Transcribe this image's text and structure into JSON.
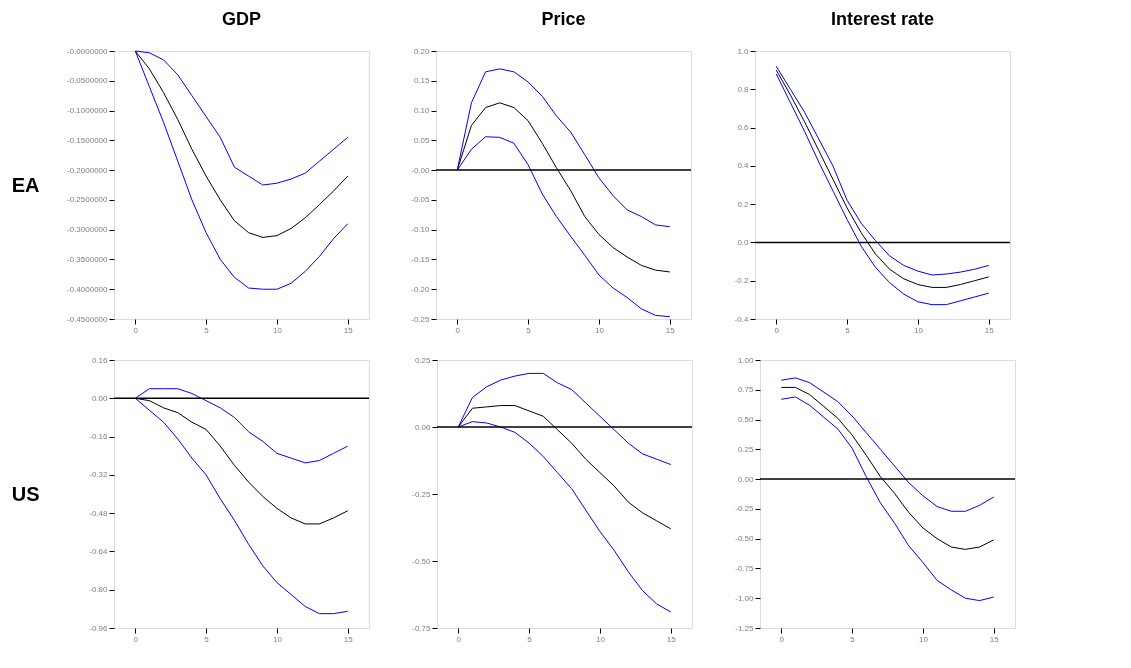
{
  "chart_data": [
    {
      "type": "line",
      "title": "GDP",
      "ylabel": "EA",
      "x": [
        0,
        1,
        2,
        3,
        4,
        5,
        6,
        7,
        8,
        9,
        10,
        11,
        12,
        13,
        14,
        15
      ],
      "series": [
        {
          "color": "#0000ff",
          "values": [
            0,
            -0.003,
            -0.015,
            -0.04,
            -0.075,
            -0.11,
            -0.145,
            -0.195,
            -0.21,
            -0.225,
            -0.222,
            -0.215,
            -0.205,
            -0.185,
            -0.165,
            -0.145
          ]
        },
        {
          "color": "#000000",
          "values": [
            0,
            -0.03,
            -0.07,
            -0.115,
            -0.165,
            -0.21,
            -0.25,
            -0.285,
            -0.305,
            -0.313,
            -0.31,
            -0.298,
            -0.28,
            -0.258,
            -0.235,
            -0.21
          ]
        },
        {
          "color": "#0000ff",
          "values": [
            0,
            -0.06,
            -0.12,
            -0.185,
            -0.25,
            -0.305,
            -0.35,
            -0.38,
            -0.398,
            -0.4,
            -0.4,
            -0.39,
            -0.37,
            -0.345,
            -0.315,
            -0.29
          ]
        }
      ],
      "xlim": [
        -1.5,
        16.5
      ],
      "xticks": [
        0,
        5,
        10,
        15
      ],
      "ylim": [
        -0.45,
        0
      ],
      "yticks": [
        {
          "value": 0,
          "label": "-0.0000000"
        },
        {
          "value": -0.05,
          "label": "-0.0500000"
        },
        {
          "value": -0.1,
          "label": "-0.1000000"
        },
        {
          "value": -0.15,
          "label": "-0.1500000"
        },
        {
          "value": -0.2,
          "label": "-0.2000000"
        },
        {
          "value": -0.25,
          "label": "-0.2500000"
        },
        {
          "value": -0.3,
          "label": "-0.3000000"
        },
        {
          "value": -0.35,
          "label": "-0.3500000"
        },
        {
          "value": -0.4,
          "label": "-0.4000000"
        },
        {
          "value": -0.45,
          "label": "-0.4500000"
        }
      ]
    },
    {
      "type": "line",
      "title": "Price",
      "x": [
        0,
        1,
        2,
        3,
        4,
        5,
        6,
        7,
        8,
        9,
        10,
        11,
        12,
        13,
        14,
        15
      ],
      "series": [
        {
          "color": "#0000ff",
          "values": [
            0,
            0.113,
            0.165,
            0.17,
            0.165,
            0.148,
            0.124,
            0.091,
            0.064,
            0.026,
            -0.013,
            -0.043,
            -0.067,
            -0.078,
            -0.092,
            -0.095
          ]
        },
        {
          "color": "#000000",
          "values": [
            0,
            0.075,
            0.105,
            0.113,
            0.105,
            0.083,
            0.045,
            0.004,
            -0.034,
            -0.078,
            -0.108,
            -0.13,
            -0.146,
            -0.16,
            -0.168,
            -0.171
          ]
        },
        {
          "color": "#0000ff",
          "values": [
            0,
            0.035,
            0.056,
            0.055,
            0.045,
            0.009,
            -0.04,
            -0.078,
            -0.111,
            -0.143,
            -0.176,
            -0.198,
            -0.214,
            -0.233,
            -0.244,
            -0.246
          ]
        }
      ],
      "xlim": [
        -1.5,
        16.5
      ],
      "xticks": [
        0,
        5,
        10,
        15
      ],
      "ylim": [
        -0.25,
        0.2
      ],
      "yticks": [
        {
          "value": 0.2,
          "label": "0.20"
        },
        {
          "value": 0.15,
          "label": "0.15"
        },
        {
          "value": 0.1,
          "label": "0.10"
        },
        {
          "value": 0.05,
          "label": "0.05"
        },
        {
          "value": 0,
          "label": "-0.00"
        },
        {
          "value": -0.05,
          "label": "-0.05"
        },
        {
          "value": -0.1,
          "label": "-0.10"
        },
        {
          "value": -0.15,
          "label": "-0.15"
        },
        {
          "value": -0.2,
          "label": "-0.20"
        },
        {
          "value": -0.25,
          "label": "-0.25"
        }
      ],
      "ref_lines": [
        {
          "axis": "y",
          "value": 0,
          "color": "#000000"
        }
      ]
    },
    {
      "type": "line",
      "title": "Interest rate",
      "x": [
        0,
        1,
        2,
        3,
        4,
        5,
        6,
        7,
        8,
        9,
        10,
        11,
        12,
        13,
        14,
        15
      ],
      "series": [
        {
          "color": "#0000ff",
          "values": [
            0.92,
            0.8,
            0.68,
            0.54,
            0.4,
            0.22,
            0.1,
            0.01,
            -0.07,
            -0.12,
            -0.15,
            -0.17,
            -0.165,
            -0.155,
            -0.14,
            -0.12
          ]
        },
        {
          "color": "#000000",
          "values": [
            0.9,
            0.77,
            0.63,
            0.48,
            0.33,
            0.18,
            0.05,
            -0.06,
            -0.14,
            -0.19,
            -0.22,
            -0.235,
            -0.235,
            -0.22,
            -0.2,
            -0.18
          ]
        },
        {
          "color": "#0000ff",
          "values": [
            0.88,
            0.73,
            0.58,
            0.42,
            0.27,
            0.12,
            -0.02,
            -0.13,
            -0.21,
            -0.27,
            -0.31,
            -0.325,
            -0.325,
            -0.305,
            -0.285,
            -0.265
          ]
        }
      ],
      "xlim": [
        -1.5,
        16.5
      ],
      "xticks": [
        0,
        5,
        10,
        15
      ],
      "ylim": [
        -0.4,
        1.0
      ],
      "yticks": [
        {
          "value": 1.0,
          "label": "1.0"
        },
        {
          "value": 0.8,
          "label": "0.8"
        },
        {
          "value": 0.6,
          "label": "0.6"
        },
        {
          "value": 0.4,
          "label": "0.4"
        },
        {
          "value": 0.2,
          "label": "0.2"
        },
        {
          "value": 0,
          "label": "0.0"
        },
        {
          "value": -0.2,
          "label": "-0.2"
        },
        {
          "value": -0.4,
          "label": "-0.4"
        }
      ],
      "ref_lines": [
        {
          "axis": "y",
          "value": 0,
          "color": "#000000"
        }
      ]
    },
    {
      "type": "line",
      "ylabel": "US",
      "x": [
        0,
        1,
        2,
        3,
        4,
        5,
        6,
        7,
        8,
        9,
        10,
        11,
        12,
        13,
        14,
        15
      ],
      "series": [
        {
          "color": "#0000ff",
          "values": [
            0,
            0.04,
            0.04,
            0.04,
            0.02,
            -0.01,
            -0.04,
            -0.08,
            -0.14,
            -0.18,
            -0.23,
            -0.25,
            -0.27,
            -0.26,
            -0.23,
            -0.2
          ]
        },
        {
          "color": "#000000",
          "values": [
            0,
            -0.01,
            -0.04,
            -0.06,
            -0.1,
            -0.13,
            -0.2,
            -0.28,
            -0.35,
            -0.41,
            -0.46,
            -0.5,
            -0.525,
            -0.525,
            -0.5,
            -0.47
          ]
        },
        {
          "color": "#0000ff",
          "values": [
            0,
            -0.05,
            -0.1,
            -0.17,
            -0.25,
            -0.32,
            -0.42,
            -0.51,
            -0.61,
            -0.7,
            -0.77,
            -0.82,
            -0.87,
            -0.9,
            -0.9,
            -0.89
          ]
        }
      ],
      "xlim": [
        -1.5,
        16.5
      ],
      "xticks": [
        0,
        5,
        10,
        15
      ],
      "ylim": [
        -0.96,
        0.16
      ],
      "yticks": [
        {
          "value": 0.16,
          "label": "0.16"
        },
        {
          "value": 0,
          "label": "0.00"
        },
        {
          "value": -0.16,
          "label": "-0.16"
        },
        {
          "value": -0.32,
          "label": "-0.32"
        },
        {
          "value": -0.48,
          "label": "-0.48"
        },
        {
          "value": -0.64,
          "label": "-0.64"
        },
        {
          "value": -0.8,
          "label": "-0.80"
        },
        {
          "value": -0.96,
          "label": "-0.96"
        }
      ],
      "ref_lines": [
        {
          "axis": "y",
          "value": 0,
          "color": "#000000"
        }
      ]
    },
    {
      "type": "line",
      "x": [
        0,
        1,
        2,
        3,
        4,
        5,
        6,
        7,
        8,
        9,
        10,
        11,
        12,
        13,
        14,
        15
      ],
      "series": [
        {
          "color": "#0000ff",
          "values": [
            0,
            0.11,
            0.15,
            0.175,
            0.19,
            0.2,
            0.2,
            0.165,
            0.14,
            0.09,
            0.04,
            -0.01,
            -0.06,
            -0.1,
            -0.12,
            -0.14
          ]
        },
        {
          "color": "#000000",
          "values": [
            0,
            0.07,
            0.075,
            0.08,
            0.08,
            0.06,
            0.04,
            -0.01,
            -0.06,
            -0.12,
            -0.17,
            -0.22,
            -0.28,
            -0.32,
            -0.35,
            -0.38
          ]
        },
        {
          "color": "#0000ff",
          "values": [
            0,
            0.02,
            0.015,
            0,
            -0.02,
            -0.06,
            -0.11,
            -0.17,
            -0.23,
            -0.31,
            -0.39,
            -0.46,
            -0.54,
            -0.61,
            -0.66,
            -0.69
          ]
        }
      ],
      "xlim": [
        -1.5,
        16.5
      ],
      "xticks": [
        0,
        5,
        10,
        15
      ],
      "ylim": [
        -0.75,
        0.25
      ],
      "yticks": [
        {
          "value": 0.25,
          "label": "0.25"
        },
        {
          "value": 0,
          "label": "0.00"
        },
        {
          "value": -0.25,
          "label": "-0.25"
        },
        {
          "value": -0.5,
          "label": "-0.50"
        },
        {
          "value": -0.75,
          "label": "-0.75"
        }
      ],
      "ref_lines": [
        {
          "axis": "y",
          "value": 0,
          "color": "#000000"
        }
      ]
    },
    {
      "type": "line",
      "x": [
        0,
        1,
        2,
        3,
        4,
        5,
        6,
        7,
        8,
        9,
        10,
        11,
        12,
        13,
        14,
        15
      ],
      "series": [
        {
          "color": "#0000ff",
          "values": [
            0.83,
            0.85,
            0.81,
            0.73,
            0.65,
            0.53,
            0.39,
            0.25,
            0.11,
            -0.03,
            -0.14,
            -0.23,
            -0.27,
            -0.27,
            -0.22,
            -0.15
          ]
        },
        {
          "color": "#000000",
          "values": [
            0.77,
            0.77,
            0.71,
            0.61,
            0.51,
            0.37,
            0.2,
            0.02,
            -0.12,
            -0.28,
            -0.41,
            -0.5,
            -0.57,
            -0.59,
            -0.57,
            -0.51
          ]
        },
        {
          "color": "#0000ff",
          "values": [
            0.67,
            0.69,
            0.62,
            0.52,
            0.42,
            0.26,
            0.02,
            -0.2,
            -0.37,
            -0.56,
            -0.7,
            -0.85,
            -0.93,
            -1.0,
            -1.02,
            -0.99
          ]
        }
      ],
      "xlim": [
        -1.5,
        16.5
      ],
      "xticks": [
        0,
        5,
        10,
        15
      ],
      "ylim": [
        -1.25,
        1.0
      ],
      "yticks": [
        {
          "value": 1.0,
          "label": "1.00"
        },
        {
          "value": 0.75,
          "label": "0.75"
        },
        {
          "value": 0.5,
          "label": "0.50"
        },
        {
          "value": 0.25,
          "label": "0.25"
        },
        {
          "value": 0,
          "label": "0.00"
        },
        {
          "value": -0.25,
          "label": "-0.25"
        },
        {
          "value": -0.5,
          "label": "-0.50"
        },
        {
          "value": -0.75,
          "label": "-0.75"
        },
        {
          "value": -1.0,
          "label": "-1.00"
        },
        {
          "value": -1.25,
          "label": "-1.25"
        }
      ],
      "ref_lines": [
        {
          "axis": "y",
          "value": 0,
          "color": "#000000"
        }
      ]
    }
  ]
}
